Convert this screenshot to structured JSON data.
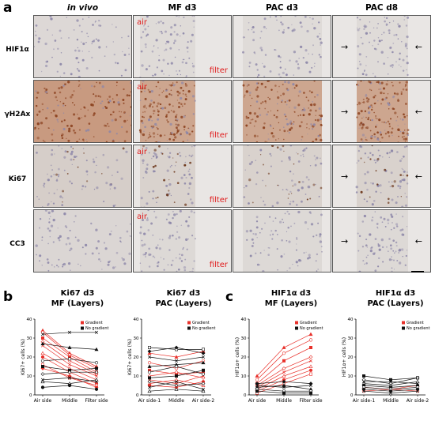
{
  "panel_a": {
    "letter": "a",
    "columns": [
      "in vivo",
      "MF d3",
      "PAC d3",
      "PAC d8"
    ],
    "rows": [
      "HIF1α",
      "γH2Ax",
      "Ki67",
      "CC3"
    ],
    "air_label": "air",
    "filter_label": "filter",
    "arrow_left": "→",
    "arrow_right": "←",
    "tile_tones": {
      "HIF1α": "#ddd8d6",
      "γH2Ax": "#c89a80",
      "Ki67": "#d6cec9",
      "CC3": "#dad6d3"
    }
  },
  "panel_b": {
    "letter": "b"
  },
  "panel_c": {
    "letter": "c"
  },
  "chart_data": [
    {
      "type": "line",
      "title_line1": "Ki67 d3",
      "title_line2": "MF (Layers)",
      "ylabel": "Ki67+ cells (%)",
      "categories": [
        "Air side",
        "Middle",
        "Filter side"
      ],
      "ylim": [
        0,
        40
      ],
      "yticks": [
        0,
        10,
        20,
        30,
        40
      ],
      "legend": [
        "Gradient",
        "No gradient"
      ],
      "legend_colors": [
        "#e8302a",
        "#111111"
      ],
      "series": [
        {
          "group": "Gradient",
          "values": [
            34,
            22,
            15
          ]
        },
        {
          "group": "Gradient",
          "values": [
            33,
            21,
            14
          ]
        },
        {
          "group": "Gradient",
          "values": [
            30,
            20,
            12
          ]
        },
        {
          "group": "Gradient",
          "values": [
            28,
            18,
            11
          ]
        },
        {
          "group": "Gradient",
          "values": [
            26,
            16,
            10
          ]
        },
        {
          "group": "Gradient",
          "values": [
            22,
            14,
            8
          ]
        },
        {
          "group": "Gradient",
          "values": [
            20,
            12,
            6
          ]
        },
        {
          "group": "Gradient",
          "values": [
            16,
            9,
            5
          ]
        },
        {
          "group": "Gradient",
          "values": [
            14,
            10,
            4
          ]
        },
        {
          "group": "No gradient",
          "values": [
            32,
            33,
            33
          ]
        },
        {
          "group": "No gradient",
          "values": [
            27,
            25,
            24
          ]
        },
        {
          "group": "No gradient",
          "values": [
            18,
            19,
            17
          ]
        },
        {
          "group": "No gradient",
          "values": [
            15,
            13,
            14
          ]
        },
        {
          "group": "No gradient",
          "values": [
            11,
            12,
            12
          ]
        },
        {
          "group": "No gradient",
          "values": [
            8,
            9,
            7
          ]
        },
        {
          "group": "No gradient",
          "values": [
            7,
            6,
            8
          ]
        },
        {
          "group": "No gradient",
          "values": [
            4,
            5,
            3
          ]
        }
      ]
    },
    {
      "type": "line",
      "title_line1": "Ki67 d3",
      "title_line2": "PAC (Layers)",
      "ylabel": "Ki67+ cells (%)",
      "categories": [
        "Air side-1",
        "Middle",
        "Air side-2"
      ],
      "ylim": [
        0,
        40
      ],
      "yticks": [
        0,
        10,
        20,
        30,
        40
      ],
      "legend": [
        "Gradient",
        "No gradient"
      ],
      "legend_colors": [
        "#e8302a",
        "#111111"
      ],
      "series": [
        {
          "group": "Gradient",
          "values": [
            22,
            20,
            23
          ]
        },
        {
          "group": "Gradient",
          "values": [
            17,
            14,
            18
          ]
        },
        {
          "group": "Gradient",
          "values": [
            13,
            11,
            12
          ]
        },
        {
          "group": "Gradient",
          "values": [
            10,
            12,
            9
          ]
        },
        {
          "group": "Gradient",
          "values": [
            8,
            6,
            10
          ]
        },
        {
          "group": "Gradient",
          "values": [
            6,
            8,
            5
          ]
        },
        {
          "group": "Gradient",
          "values": [
            5,
            4,
            7
          ]
        },
        {
          "group": "No gradient",
          "values": [
            25,
            24,
            24
          ]
        },
        {
          "group": "No gradient",
          "values": [
            23,
            25,
            22
          ]
        },
        {
          "group": "No gradient",
          "values": [
            20,
            18,
            20
          ]
        },
        {
          "group": "No gradient",
          "values": [
            15,
            16,
            17
          ]
        },
        {
          "group": "No gradient",
          "values": [
            12,
            15,
            11
          ]
        },
        {
          "group": "No gradient",
          "values": [
            9,
            10,
            13
          ]
        },
        {
          "group": "No gradient",
          "values": [
            7,
            5,
            6
          ]
        },
        {
          "group": "No gradient",
          "values": [
            4,
            7,
            3
          ]
        },
        {
          "group": "No gradient",
          "values": [
            2,
            3,
            2
          ]
        }
      ]
    },
    {
      "type": "line",
      "title_line1": "HIF1α d3",
      "title_line2": "MF (Layers)",
      "ylabel": "HIF1α+ cells (%)",
      "categories": [
        "Air side",
        "Middle",
        "Filter side"
      ],
      "ylim": [
        0,
        40
      ],
      "yticks": [
        0,
        10,
        20,
        30,
        40
      ],
      "legend": [
        "Gradient",
        "No gradient"
      ],
      "legend_colors": [
        "#e8302a",
        "#111111"
      ],
      "series": [
        {
          "group": "Gradient",
          "values": [
            10,
            25,
            32
          ]
        },
        {
          "group": "Gradient",
          "values": [
            8,
            22,
            29
          ]
        },
        {
          "group": "Gradient",
          "values": [
            6,
            18,
            25
          ]
        },
        {
          "group": "Gradient",
          "values": [
            5,
            14,
            20
          ]
        },
        {
          "group": "Gradient",
          "values": [
            4,
            12,
            18
          ]
        },
        {
          "group": "Gradient",
          "values": [
            3,
            10,
            15
          ]
        },
        {
          "group": "Gradient",
          "values": [
            2,
            8,
            13
          ]
        },
        {
          "group": "Gradient",
          "values": [
            1,
            6,
            11
          ]
        },
        {
          "group": "No gradient",
          "values": [
            6,
            7,
            6
          ]
        },
        {
          "group": "No gradient",
          "values": [
            5,
            4,
            5
          ]
        },
        {
          "group": "No gradient",
          "values": [
            4,
            5,
            3
          ]
        },
        {
          "group": "No gradient",
          "values": [
            3,
            2,
            2
          ]
        },
        {
          "group": "No gradient",
          "values": [
            2,
            1,
            1
          ]
        }
      ]
    },
    {
      "type": "line",
      "title_line1": "HIF1α d3",
      "title_line2": "PAC (Layers)",
      "ylabel": "HIF1α+ cells (%)",
      "categories": [
        "Air side-1",
        "Middle",
        "Air side-2"
      ],
      "ylim": [
        0,
        40
      ],
      "yticks": [
        0,
        10,
        20,
        30,
        40
      ],
      "legend": [
        "Gradient",
        "No gradient"
      ],
      "legend_colors": [
        "#e8302a",
        "#111111"
      ],
      "series": [
        {
          "group": "Gradient",
          "values": [
            4,
            3,
            5
          ]
        },
        {
          "group": "Gradient",
          "values": [
            2,
            3,
            2
          ]
        },
        {
          "group": "No gradient",
          "values": [
            10,
            8,
            9
          ]
        },
        {
          "group": "No gradient",
          "values": [
            8,
            6,
            9
          ]
        },
        {
          "group": "No gradient",
          "values": [
            7,
            7,
            6
          ]
        },
        {
          "group": "No gradient",
          "values": [
            6,
            5,
            7
          ]
        },
        {
          "group": "No gradient",
          "values": [
            5,
            4,
            5
          ]
        },
        {
          "group": "No gradient",
          "values": [
            4,
            3,
            4
          ]
        },
        {
          "group": "No gradient",
          "values": [
            3,
            2,
            3
          ]
        },
        {
          "group": "No gradient",
          "values": [
            2,
            1,
            2
          ]
        }
      ]
    }
  ]
}
